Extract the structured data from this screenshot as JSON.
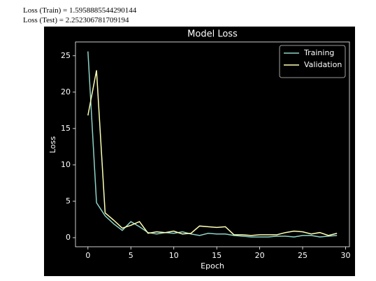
{
  "text_lines": [
    "Loss (Train) = 1.5958885544290144",
    "Loss (Test) = 2.252306781709194"
  ],
  "chart_data": {
    "type": "line",
    "title": "Model Loss",
    "x_label": "Epoch",
    "y_label": "Loss",
    "x": [
      0,
      1,
      2,
      3,
      4,
      5,
      6,
      7,
      8,
      9,
      10,
      11,
      12,
      13,
      14,
      15,
      16,
      17,
      18,
      19,
      20,
      21,
      22,
      23,
      24,
      25,
      26,
      27,
      28,
      29
    ],
    "series": [
      {
        "name": "Training",
        "color": "#8dd3c7",
        "values": [
          25.6,
          4.8,
          3.0,
          1.9,
          1.0,
          2.2,
          1.5,
          0.7,
          0.5,
          0.7,
          0.6,
          0.8,
          0.5,
          0.3,
          0.6,
          0.5,
          0.5,
          0.3,
          0.2,
          0.1,
          0.1,
          0.1,
          0.2,
          0.2,
          0.1,
          0.3,
          0.3,
          0.1,
          0.2,
          0.3
        ]
      },
      {
        "name": "Validation",
        "color": "#feffb3",
        "values": [
          16.8,
          23.0,
          3.4,
          2.4,
          1.3,
          1.7,
          2.2,
          0.6,
          0.8,
          0.7,
          0.9,
          0.5,
          0.6,
          1.6,
          1.5,
          1.4,
          1.5,
          0.4,
          0.4,
          0.3,
          0.4,
          0.4,
          0.4,
          0.7,
          0.9,
          0.8,
          0.5,
          0.7,
          0.3,
          0.6
        ]
      }
    ],
    "xlim": [
      -1.45,
      30.45
    ],
    "ylim": [
      -1.25,
      26.9
    ],
    "xticks": [
      0,
      5,
      10,
      15,
      20,
      25,
      30
    ],
    "yticks": [
      0,
      5,
      10,
      15,
      20,
      25
    ],
    "legend": "upper right",
    "background": "#000000"
  }
}
